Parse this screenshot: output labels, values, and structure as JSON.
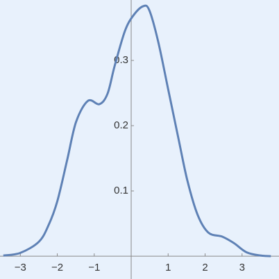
{
  "chart_data": {
    "type": "line",
    "x": [
      -3.46,
      -3.0,
      -2.5,
      -2.24,
      -2.0,
      -1.73,
      -1.49,
      -1.17,
      -0.86,
      -0.64,
      -0.45,
      -0.17,
      0.06,
      0.32,
      0.49,
      0.73,
      1.0,
      1.28,
      1.52,
      1.8,
      2.09,
      2.46,
      2.78,
      3.12,
      3.5,
      3.78
    ],
    "series": [
      {
        "color": "#5e81b5",
        "values": [
          0.001,
          0.005,
          0.022,
          0.047,
          0.084,
          0.148,
          0.206,
          0.238,
          0.233,
          0.249,
          0.291,
          0.345,
          0.369,
          0.383,
          0.377,
          0.329,
          0.256,
          0.18,
          0.116,
          0.063,
          0.036,
          0.03,
          0.02,
          0.006,
          0.001,
          0
        ]
      }
    ],
    "xlim": [
      -3.55,
      4.0
    ],
    "ylim": [
      -0.035,
      0.3926
    ],
    "xticks": [
      {
        "value": -3,
        "label": "−3"
      },
      {
        "value": -2,
        "label": "−2"
      },
      {
        "value": -1,
        "label": "−1"
      },
      1,
      2,
      3
    ],
    "yticks": [
      0.1,
      0.2,
      0.3
    ],
    "background": "#e8f1fc"
  }
}
